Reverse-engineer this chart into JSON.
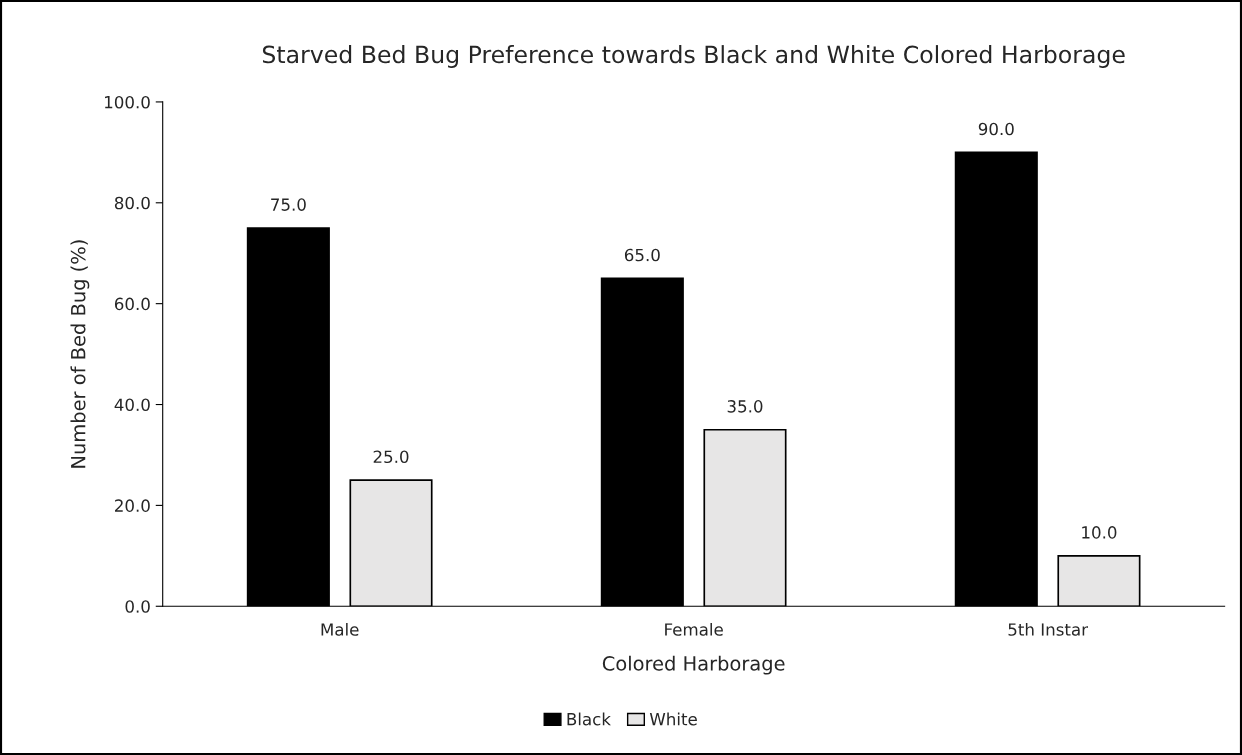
{
  "chart_data": {
    "type": "bar",
    "title": "Starved Bed Bug Preference towards Black and White Colored Harborage",
    "xlabel": "Colored Harborage",
    "ylabel": "Number of Bed Bug (%)",
    "categories": [
      "Male",
      "Female",
      "5th Instar"
    ],
    "series": [
      {
        "name": "Black",
        "color": "#000000",
        "values": [
          75,
          65,
          90
        ],
        "value_labels": [
          "75.0",
          "65.0",
          "90.0"
        ]
      },
      {
        "name": "White",
        "color": "#e7e6e6",
        "values": [
          25,
          35,
          10
        ],
        "value_labels": [
          "25.0",
          "35.0",
          "10.0"
        ]
      }
    ],
    "ylim": [
      0,
      100
    ],
    "yticks": [
      {
        "value": 0,
        "label": "0.0"
      },
      {
        "value": 20,
        "label": "20.0"
      },
      {
        "value": 40,
        "label": "40.0"
      },
      {
        "value": 60,
        "label": "60.0"
      },
      {
        "value": 80,
        "label": "80.0"
      },
      {
        "value": 100,
        "label": "100.0"
      }
    ],
    "grid": false,
    "legend": "bottom"
  }
}
